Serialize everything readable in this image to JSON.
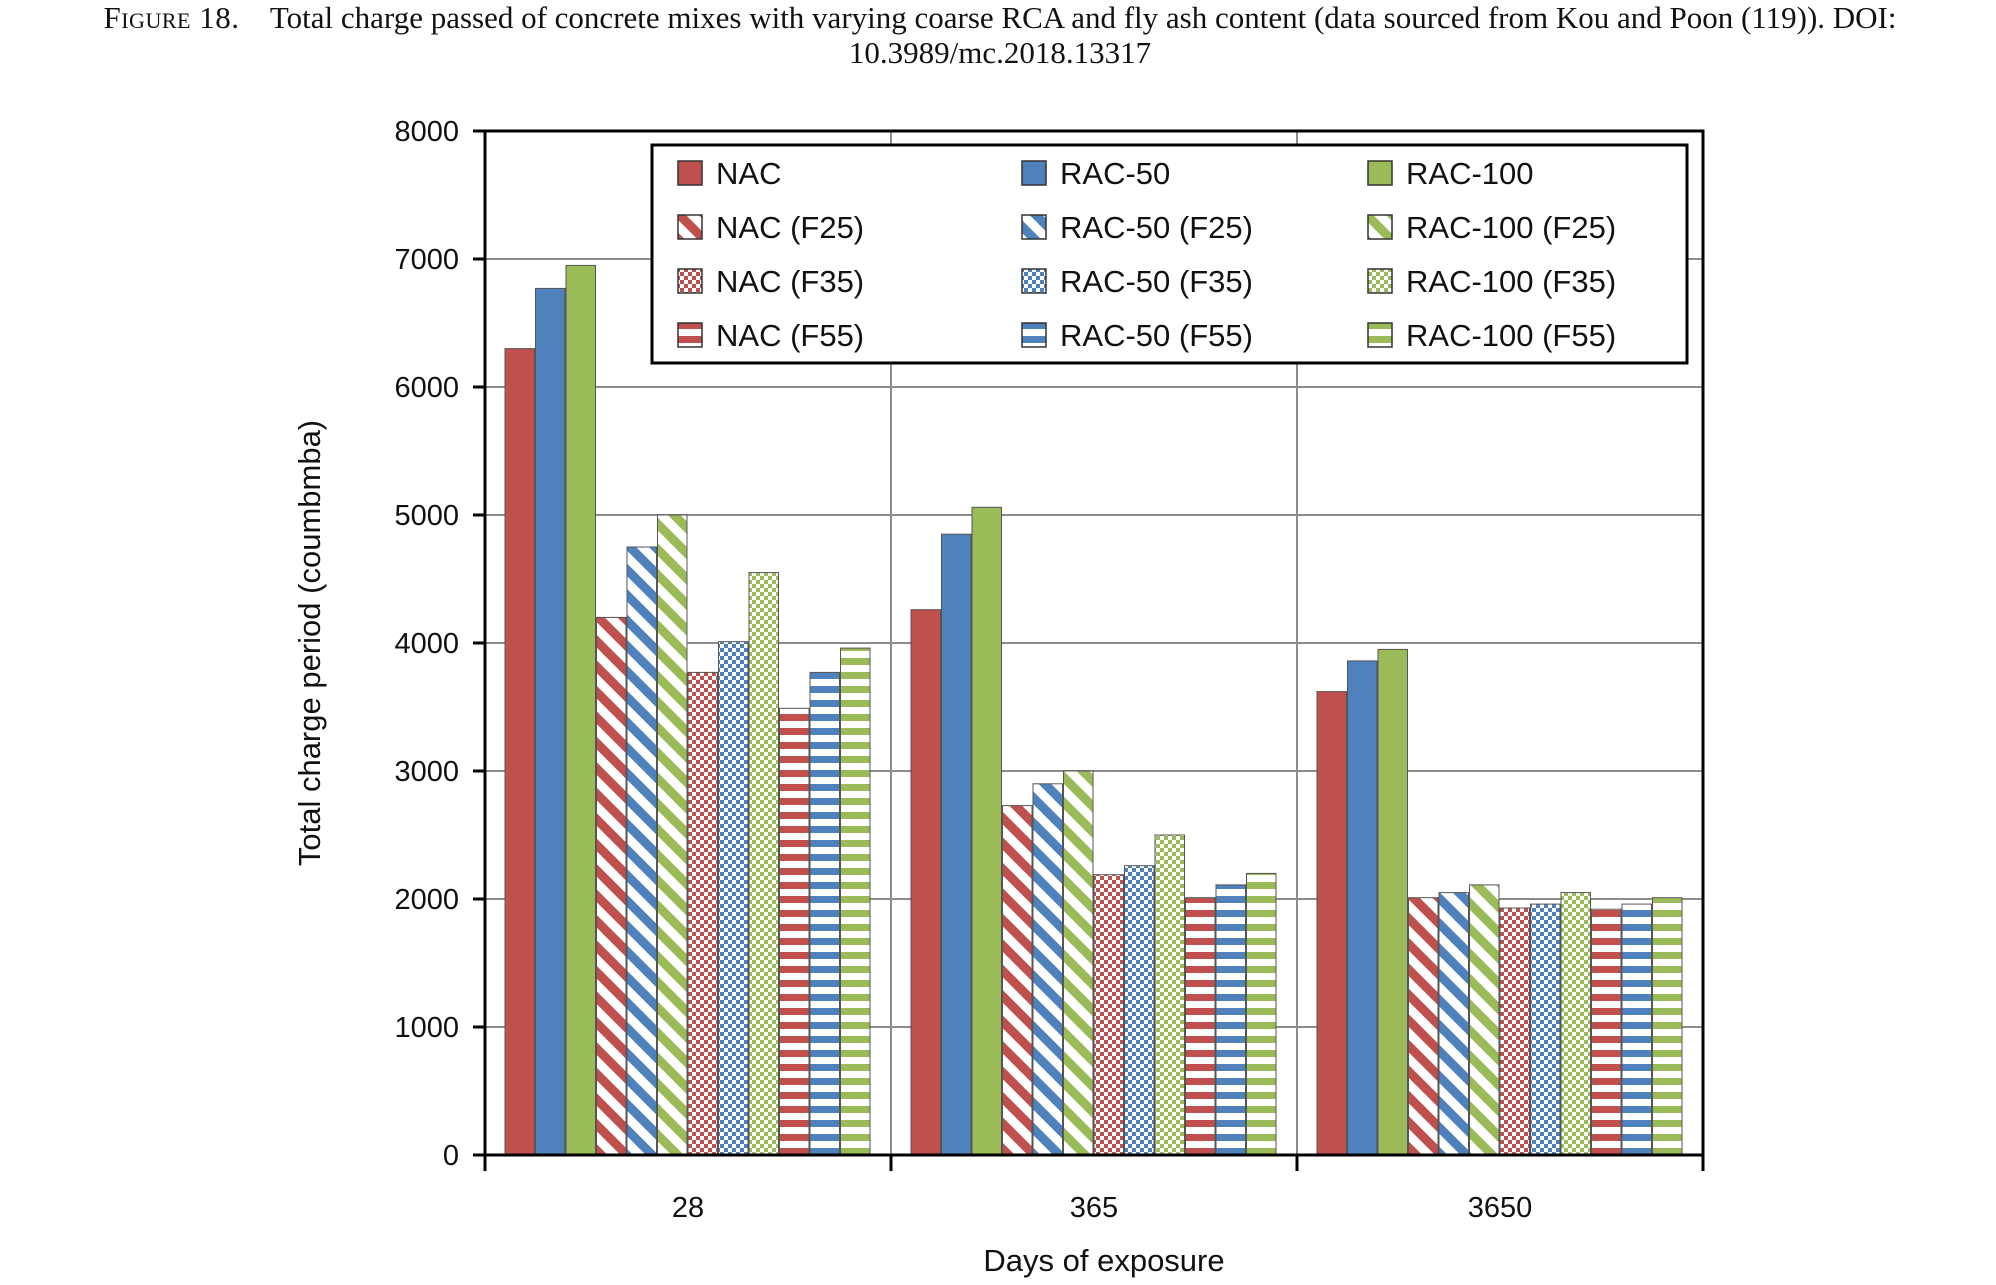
{
  "caption": {
    "label": "Figure 18.",
    "text": "Total charge passed of concrete mixes with varying coarse RCA and fly ash content (data sourced from Kou and Poon (119)). DOI: 10.3989/mc.2018.13317"
  },
  "chart_data": {
    "type": "bar",
    "title": "",
    "xlabel": "Days of exposure",
    "ylabel": "Total charge period (coumbmba)",
    "categories": [
      "28",
      "365",
      "3650"
    ],
    "ylim": [
      0,
      8000
    ],
    "yticks": [
      0,
      1000,
      2000,
      3000,
      4000,
      5000,
      6000,
      7000,
      8000
    ],
    "grid": true,
    "legend": "top-right (inside plot, 3 columns)",
    "series": [
      {
        "name": "NAC",
        "color": "#c0504d",
        "pattern": "solid",
        "values": [
          6300,
          4260,
          3620
        ]
      },
      {
        "name": "RAC-50",
        "color": "#4f81bd",
        "pattern": "solid",
        "values": [
          6770,
          4850,
          3860
        ]
      },
      {
        "name": "RAC-100",
        "color": "#9bbb59",
        "pattern": "solid",
        "values": [
          6950,
          5060,
          3950
        ]
      },
      {
        "name": "NAC (F25)",
        "color": "#c0504d",
        "pattern": "diagonal",
        "values": [
          4200,
          2730,
          2010
        ]
      },
      {
        "name": "RAC-50 (F25)",
        "color": "#4f81bd",
        "pattern": "diagonal",
        "values": [
          4750,
          2900,
          2050
        ]
      },
      {
        "name": "RAC-100 (F25)",
        "color": "#9bbb59",
        "pattern": "diagonal",
        "values": [
          5000,
          3000,
          2110
        ]
      },
      {
        "name": "NAC (F35)",
        "color": "#c0504d",
        "pattern": "checker",
        "values": [
          3770,
          2190,
          1930
        ]
      },
      {
        "name": "RAC-50 (F35)",
        "color": "#4f81bd",
        "pattern": "checker",
        "values": [
          4010,
          2260,
          1960
        ]
      },
      {
        "name": "RAC-100 (F35)",
        "color": "#9bbb59",
        "pattern": "checker",
        "values": [
          4550,
          2500,
          2050
        ]
      },
      {
        "name": "NAC (F55)",
        "color": "#c0504d",
        "pattern": "horizontal",
        "values": [
          3490,
          2010,
          1920
        ]
      },
      {
        "name": "RAC-50 (F55)",
        "color": "#4f81bd",
        "pattern": "horizontal",
        "values": [
          3770,
          2110,
          1960
        ]
      },
      {
        "name": "RAC-100 (F55)",
        "color": "#9bbb59",
        "pattern": "horizontal",
        "values": [
          3960,
          2200,
          2010
        ]
      }
    ]
  }
}
